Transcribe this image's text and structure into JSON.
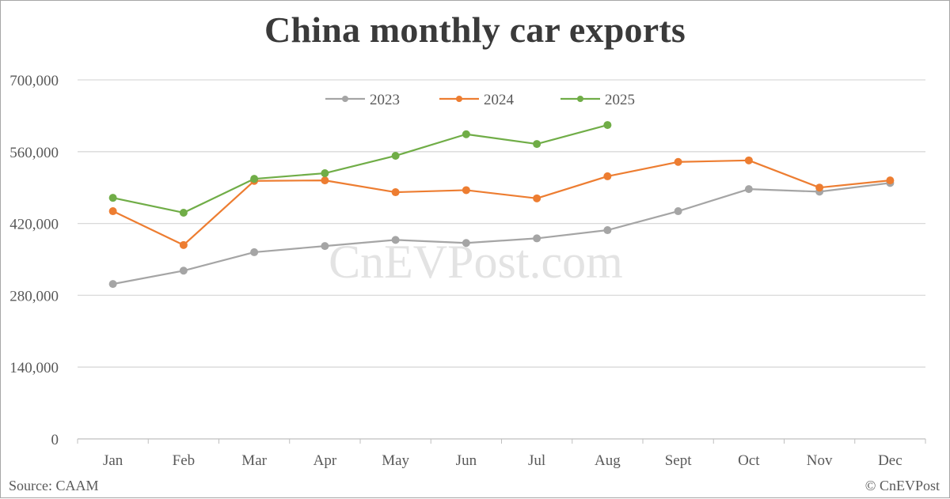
{
  "title": "China monthly car exports",
  "watermark": "CnEVPost.com",
  "footer": {
    "source": "Source: CAAM",
    "copyright": "© CnEVPost"
  },
  "legend": [
    {
      "label": "2023",
      "color": "#a5a5a5"
    },
    {
      "label": "2024",
      "color": "#ed7d31"
    },
    {
      "label": "2025",
      "color": "#70ad47"
    }
  ],
  "chart_data": {
    "type": "line",
    "title": "China monthly car exports",
    "xlabel": "",
    "ylabel": "",
    "categories": [
      "Jan",
      "Feb",
      "Mar",
      "Apr",
      "May",
      "Jun",
      "Jul",
      "Aug",
      "Sept",
      "Oct",
      "Nov",
      "Dec"
    ],
    "yticks": [
      "0",
      "140,000",
      "280,000",
      "420,000",
      "560,000",
      "700,000"
    ],
    "ylim": [
      0,
      700000
    ],
    "grid": true,
    "legend_position": "top",
    "series": [
      {
        "name": "2023",
        "color": "#a5a5a5",
        "values": [
          302000,
          328000,
          364000,
          376000,
          388000,
          382000,
          391000,
          407000,
          444000,
          487000,
          482000,
          499000
        ]
      },
      {
        "name": "2024",
        "color": "#ed7d31",
        "values": [
          444000,
          378000,
          503000,
          504000,
          481000,
          485000,
          469000,
          512000,
          540000,
          543000,
          490000,
          504000
        ]
      },
      {
        "name": "2025",
        "color": "#70ad47",
        "values": [
          470000,
          441000,
          507000,
          518000,
          552000,
          594000,
          575000,
          612000
        ]
      }
    ]
  }
}
